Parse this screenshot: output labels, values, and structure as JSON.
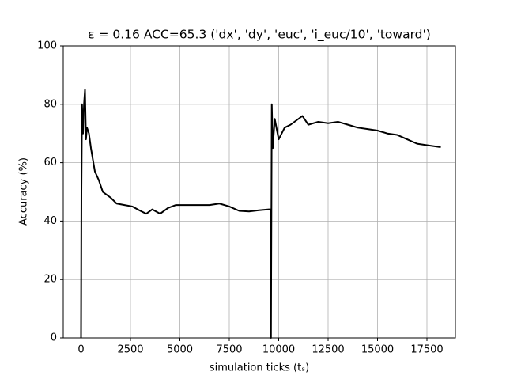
{
  "chart_data": {
    "type": "line",
    "title": "ε = 0.16 ACC=65.3 ('dx', 'dy', 'euc', 'i_euc/10', 'toward')",
    "x_label": "simulation ticks (tₛ)",
    "y_label": "Accuracy (%)",
    "xlim": [
      -900,
      18940
    ],
    "ylim": [
      0,
      100
    ],
    "xticks": [
      0,
      2500,
      5000,
      7500,
      10000,
      12500,
      15000,
      17500
    ],
    "yticks": [
      0,
      20,
      40,
      60,
      80,
      100
    ],
    "grid": true,
    "series": [
      {
        "color": "#000000",
        "x": [
          0,
          20,
          50,
          100,
          150,
          200,
          250,
          300,
          400,
          500,
          700,
          900,
          1100,
          1300,
          1500,
          1800,
          2200,
          2600,
          3000,
          3300,
          3600,
          4000,
          4400,
          4800,
          5500,
          6000,
          6500,
          7000,
          7500,
          8000,
          8500,
          9000,
          9500,
          9600,
          9610,
          9650,
          9700,
          9800,
          10000,
          10300,
          10600,
          11000,
          11200,
          11500,
          12000,
          12500,
          13000,
          13500,
          14000,
          14500,
          15000,
          15500,
          16000,
          16500,
          17000,
          17500,
          18200
        ],
        "values": [
          0,
          50,
          80,
          70,
          80,
          85,
          68,
          72,
          70,
          65,
          57,
          54,
          50,
          49,
          48,
          46,
          45.5,
          45,
          43.5,
          42.5,
          44,
          42.5,
          44.5,
          45.5,
          45.5,
          45.5,
          45.5,
          46,
          45,
          43.5,
          43.3,
          43.7,
          44,
          44,
          0,
          80,
          65,
          75,
          68,
          72,
          73,
          75,
          76,
          73,
          74,
          73.5,
          74,
          73,
          72,
          71.5,
          71,
          70,
          69.5,
          68,
          66.5,
          66,
          65.3
        ]
      }
    ]
  }
}
